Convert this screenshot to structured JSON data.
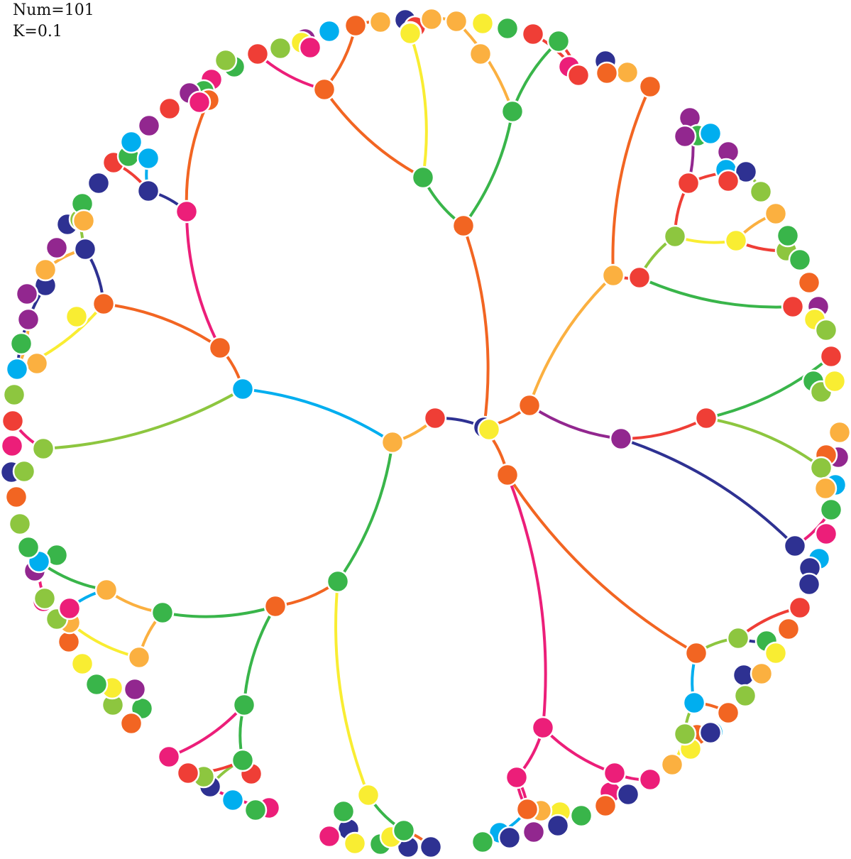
{
  "labels": {
    "num": "Num=101",
    "k": "K=0.1"
  },
  "colors": {
    "red": "#ef3e36",
    "orange": "#f26522",
    "lightorange": "#fbb040",
    "yellow": "#f9ed32",
    "green": "#39b54a",
    "lime": "#8dc63f",
    "cyan": "#00aeef",
    "navy": "#2e3192",
    "purple": "#92278f",
    "pink": "#ec1e79"
  },
  "nodes": [
    {
      "id": "center",
      "c": "navy"
    },
    {
      "id": "ctr-y",
      "c": "yellow"
    },
    {
      "id": "n-red",
      "c": "red"
    },
    {
      "id": "n-or",
      "c": "lightorange"
    },
    {
      "id": "n-cy",
      "c": "cyan"
    },
    {
      "id": "n-gr",
      "c": "green"
    },
    {
      "id": "ne-or",
      "c": "orange"
    },
    {
      "id": "s-or",
      "c": "orange"
    },
    {
      "id": "top-or",
      "c": "orange"
    },
    {
      "id": "top-gr",
      "c": "green"
    },
    {
      "id": "top-or2",
      "c": "orange"
    },
    {
      "id": "top-gr2",
      "c": "green"
    },
    {
      "id": "tr-lo",
      "c": "lightorange"
    },
    {
      "id": "tr-red",
      "c": "red"
    },
    {
      "id": "tr-lime",
      "c": "lime"
    },
    {
      "id": "tr-y",
      "c": "yellow"
    },
    {
      "id": "tr-red2",
      "c": "red"
    },
    {
      "id": "tr-or",
      "c": "orange"
    },
    {
      "id": "r-pu",
      "c": "purple"
    },
    {
      "id": "r-red",
      "c": "red"
    },
    {
      "id": "r-navy",
      "c": "navy"
    },
    {
      "id": "l-or",
      "c": "orange"
    },
    {
      "id": "l-pink",
      "c": "pink"
    },
    {
      "id": "l-or2",
      "c": "orange"
    },
    {
      "id": "l-navy",
      "c": "navy"
    },
    {
      "id": "l-lime",
      "c": "lime"
    },
    {
      "id": "sw-or",
      "c": "orange"
    },
    {
      "id": "sw-gr",
      "c": "green"
    },
    {
      "id": "sw-lo",
      "c": "lightorange"
    },
    {
      "id": "sw-lo2",
      "c": "lightorange"
    },
    {
      "id": "b-gr",
      "c": "green"
    },
    {
      "id": "b-gr2",
      "c": "green"
    },
    {
      "id": "b-y",
      "c": "yellow"
    },
    {
      "id": "b-gr3",
      "c": "green"
    },
    {
      "id": "se-pink",
      "c": "pink"
    },
    {
      "id": "se-pink2",
      "c": "pink"
    },
    {
      "id": "se-pink3",
      "c": "pink"
    },
    {
      "id": "se-or",
      "c": "orange"
    },
    {
      "id": "se-lime",
      "c": "lime"
    },
    {
      "id": "se-cy",
      "c": "cyan"
    },
    {
      "id": "se-lime2",
      "c": "lime"
    },
    {
      "id": "tl-or",
      "c": "orange"
    },
    {
      "id": "tl-navy",
      "c": "navy"
    },
    {
      "id": "tl-pink",
      "c": "pink"
    },
    {
      "id": "o1",
      "c": "lime"
    },
    {
      "id": "o2",
      "c": "purple"
    },
    {
      "id": "o3",
      "c": "cyan"
    },
    {
      "id": "o4",
      "c": "yellow"
    },
    {
      "id": "o5",
      "c": "pink"
    },
    {
      "id": "o6",
      "c": "orange"
    },
    {
      "id": "o7",
      "c": "lightorange"
    },
    {
      "id": "o8",
      "c": "navy"
    },
    {
      "id": "o9",
      "c": "red"
    },
    {
      "id": "o10",
      "c": "yellow"
    },
    {
      "id": "o11",
      "c": "lightorange"
    },
    {
      "id": "o12",
      "c": "yellow"
    },
    {
      "id": "o13",
      "c": "lightorange"
    },
    {
      "id": "o14",
      "c": "green"
    },
    {
      "id": "o15",
      "c": "red"
    },
    {
      "id": "o16",
      "c": "green"
    },
    {
      "id": "o17",
      "c": "yellow"
    },
    {
      "id": "o18",
      "c": "navy"
    },
    {
      "id": "o19",
      "c": "pink"
    },
    {
      "id": "o20",
      "c": "red"
    },
    {
      "id": "o21",
      "c": "red"
    },
    {
      "id": "o22",
      "c": "lightorange"
    },
    {
      "id": "o23",
      "c": "orange"
    },
    {
      "id": "o24",
      "c": "lightorange"
    },
    {
      "id": "o25",
      "c": "purple"
    },
    {
      "id": "o26",
      "c": "green"
    },
    {
      "id": "o27",
      "c": "cyan"
    },
    {
      "id": "o28",
      "c": "purple"
    },
    {
      "id": "o29",
      "c": "purple"
    },
    {
      "id": "o30",
      "c": "cyan"
    },
    {
      "id": "o31",
      "c": "navy"
    },
    {
      "id": "o32",
      "c": "red"
    },
    {
      "id": "o33",
      "c": "orange"
    },
    {
      "id": "o34",
      "c": "lime"
    },
    {
      "id": "o35",
      "c": "lightorange"
    },
    {
      "id": "o36",
      "c": "lime"
    },
    {
      "id": "o37",
      "c": "red"
    },
    {
      "id": "o38",
      "c": "green"
    },
    {
      "id": "o39",
      "c": "orange"
    },
    {
      "id": "o40",
      "c": "purple"
    },
    {
      "id": "o41",
      "c": "green"
    },
    {
      "id": "o42",
      "c": "yellow"
    },
    {
      "id": "o43",
      "c": "lime"
    },
    {
      "id": "o44",
      "c": "red"
    },
    {
      "id": "o45",
      "c": "green"
    },
    {
      "id": "o46",
      "c": "lime"
    },
    {
      "id": "o47",
      "c": "yellow"
    },
    {
      "id": "o48",
      "c": "red"
    },
    {
      "id": "o49",
      "c": "lightorange"
    },
    {
      "id": "o50",
      "c": "purple"
    },
    {
      "id": "o51",
      "c": "orange"
    },
    {
      "id": "o52",
      "c": "lime"
    },
    {
      "id": "o53",
      "c": "cyan"
    },
    {
      "id": "o54",
      "c": "lightorange"
    },
    {
      "id": "o55",
      "c": "green"
    },
    {
      "id": "o56",
      "c": "pink"
    },
    {
      "id": "o57",
      "c": "cyan"
    },
    {
      "id": "o58",
      "c": "navy"
    },
    {
      "id": "o59",
      "c": "navy"
    },
    {
      "id": "o60",
      "c": "red"
    },
    {
      "id": "o61",
      "c": "red"
    },
    {
      "id": "o62",
      "c": "orange"
    },
    {
      "id": "o63",
      "c": "green"
    },
    {
      "id": "o64",
      "c": "yellow"
    },
    {
      "id": "o65",
      "c": "navy"
    },
    {
      "id": "o66",
      "c": "lightorange"
    },
    {
      "id": "o67",
      "c": "lime"
    },
    {
      "id": "o68",
      "c": "orange"
    },
    {
      "id": "o69",
      "c": "cyan"
    },
    {
      "id": "o70",
      "c": "lime"
    },
    {
      "id": "o71",
      "c": "orange"
    },
    {
      "id": "o72",
      "c": "navy"
    },
    {
      "id": "o73",
      "c": "yellow"
    },
    {
      "id": "o74",
      "c": "lightorange"
    },
    {
      "id": "o75",
      "c": "pink"
    },
    {
      "id": "o76",
      "c": "pink"
    },
    {
      "id": "o77",
      "c": "navy"
    },
    {
      "id": "o78",
      "c": "orange"
    },
    {
      "id": "o79",
      "c": "green"
    },
    {
      "id": "o80",
      "c": "yellow"
    },
    {
      "id": "o81",
      "c": "navy"
    },
    {
      "id": "o82",
      "c": "lightorange"
    },
    {
      "id": "o83",
      "c": "purple"
    },
    {
      "id": "o84",
      "c": "cyan"
    },
    {
      "id": "o85",
      "c": "navy"
    },
    {
      "id": "o86",
      "c": "pink"
    },
    {
      "id": "o87",
      "c": "orange"
    },
    {
      "id": "o88",
      "c": "green"
    },
    {
      "id": "o89",
      "c": "navy"
    },
    {
      "id": "o90",
      "c": "green"
    },
    {
      "id": "o91",
      "c": "yellow"
    },
    {
      "id": "o92",
      "c": "navy"
    },
    {
      "id": "o93",
      "c": "navy"
    },
    {
      "id": "o94",
      "c": "green"
    },
    {
      "id": "o95",
      "c": "pink"
    },
    {
      "id": "o96",
      "c": "yellow"
    },
    {
      "id": "o97",
      "c": "pink"
    },
    {
      "id": "o98",
      "c": "red"
    },
    {
      "id": "o99",
      "c": "green"
    },
    {
      "id": "o100",
      "c": "cyan"
    },
    {
      "id": "o101",
      "c": "navy"
    },
    {
      "id": "o102",
      "c": "lime"
    },
    {
      "id": "o103",
      "c": "pink"
    },
    {
      "id": "o104",
      "c": "red"
    },
    {
      "id": "o105",
      "c": "green"
    },
    {
      "id": "o106",
      "c": "orange"
    },
    {
      "id": "o107",
      "c": "purple"
    },
    {
      "id": "o108",
      "c": "lime"
    },
    {
      "id": "o109",
      "c": "yellow"
    },
    {
      "id": "o110",
      "c": "green"
    },
    {
      "id": "o111",
      "c": "yellow"
    },
    {
      "id": "o112",
      "c": "orange"
    },
    {
      "id": "o113",
      "c": "lightorange"
    },
    {
      "id": "o114",
      "c": "lime"
    },
    {
      "id": "o115",
      "c": "pink"
    },
    {
      "id": "o116",
      "c": "navy"
    },
    {
      "id": "o117",
      "c": "green"
    },
    {
      "id": "o118",
      "c": "pink"
    },
    {
      "id": "o119",
      "c": "lime"
    },
    {
      "id": "o120",
      "c": "purple"
    },
    {
      "id": "o121",
      "c": "cyan"
    },
    {
      "id": "o122",
      "c": "green"
    },
    {
      "id": "o123",
      "c": "lime"
    },
    {
      "id": "o124",
      "c": "navy"
    },
    {
      "id": "o125",
      "c": "lightorange"
    },
    {
      "id": "o126",
      "c": "lime"
    },
    {
      "id": "o127",
      "c": "pink"
    },
    {
      "id": "o128",
      "c": "red"
    },
    {
      "id": "o129",
      "c": "lime"
    },
    {
      "id": "o130",
      "c": "orange"
    },
    {
      "id": "o131",
      "c": "lightorange"
    },
    {
      "id": "o132",
      "c": "cyan"
    },
    {
      "id": "o133",
      "c": "green"
    },
    {
      "id": "o134",
      "c": "yellow"
    },
    {
      "id": "o135",
      "c": "purple"
    },
    {
      "id": "o136",
      "c": "navy"
    },
    {
      "id": "o137",
      "c": "purple"
    },
    {
      "id": "o138",
      "c": "lightorange"
    },
    {
      "id": "o139",
      "c": "purple"
    },
    {
      "id": "o140",
      "c": "navy"
    },
    {
      "id": "o141",
      "c": "lime"
    },
    {
      "id": "o142",
      "c": "green"
    },
    {
      "id": "o143",
      "c": "lightorange"
    },
    {
      "id": "o144",
      "c": "navy"
    },
    {
      "id": "o145",
      "c": "red"
    },
    {
      "id": "o146",
      "c": "green"
    },
    {
      "id": "o147",
      "c": "cyan"
    },
    {
      "id": "o148",
      "c": "cyan"
    },
    {
      "id": "o149",
      "c": "purple"
    },
    {
      "id": "o150",
      "c": "red"
    },
    {
      "id": "o151",
      "c": "navy"
    },
    {
      "id": "o152",
      "c": "navy"
    },
    {
      "id": "o153",
      "c": "green"
    },
    {
      "id": "o154",
      "c": "pink"
    },
    {
      "id": "o155",
      "c": "green"
    },
    {
      "id": "o156",
      "c": "lime"
    },
    {
      "id": "o157",
      "c": "purple"
    }
  ],
  "edges": [
    {
      "from": "ctr-y",
      "to": "n-red",
      "c": "navy"
    },
    {
      "from": "n-red",
      "to": "n-or",
      "c": "lightorange"
    },
    {
      "from": "n-or",
      "to": "n-cy",
      "c": "cyan"
    },
    {
      "from": "n-or",
      "to": "n-gr",
      "c": "green"
    },
    {
      "from": "center",
      "to": "ne-or",
      "c": "orange"
    },
    {
      "from": "center",
      "to": "s-or",
      "c": "orange"
    },
    {
      "from": "center",
      "to": "top-or",
      "c": "orange"
    },
    {
      "from": "top-or",
      "to": "top-gr",
      "c": "green"
    },
    {
      "from": "top-or",
      "to": "top-gr2",
      "c": "green"
    },
    {
      "from": "top-gr",
      "to": "top-or2",
      "c": "orange"
    },
    {
      "from": "top-gr",
      "to": "o12",
      "c": "yellow"
    },
    {
      "from": "top-or2",
      "to": "o20",
      "c": "pink"
    },
    {
      "from": "top-or2",
      "to": "o6",
      "c": "orange"
    },
    {
      "from": "o6",
      "to": "o7",
      "c": "orange"
    },
    {
      "from": "top-gr2",
      "to": "o13",
      "c": "lightorange"
    },
    {
      "from": "top-gr2",
      "to": "o16",
      "c": "green"
    },
    {
      "from": "o13",
      "to": "o11",
      "c": "lightorange"
    },
    {
      "from": "o16",
      "to": "o21",
      "c": "red"
    },
    {
      "from": "o21",
      "to": "o15",
      "c": "red"
    },
    {
      "from": "ne-or",
      "to": "tr-lo",
      "c": "lightorange"
    },
    {
      "from": "ne-or",
      "to": "r-pu",
      "c": "purple"
    },
    {
      "from": "tr-lo",
      "to": "tr-or",
      "c": "orange"
    },
    {
      "from": "tr-lo",
      "to": "tr-red",
      "c": "red"
    },
    {
      "from": "tr-red",
      "to": "tr-lime",
      "c": "lime"
    },
    {
      "from": "tr-red",
      "to": "o37",
      "c": "green"
    },
    {
      "from": "tr-lime",
      "to": "tr-red2",
      "c": "red"
    },
    {
      "from": "tr-lime",
      "to": "tr-y",
      "c": "yellow"
    },
    {
      "from": "tr-y",
      "to": "o35",
      "c": "lightorange"
    },
    {
      "from": "tr-y",
      "to": "o36",
      "c": "red"
    },
    {
      "from": "tr-red2",
      "to": "o31",
      "c": "red"
    },
    {
      "from": "tr-red2",
      "to": "o25",
      "c": "purple"
    },
    {
      "from": "o31",
      "to": "o34",
      "c": "lime"
    },
    {
      "from": "r-pu",
      "to": "r-red",
      "c": "red"
    },
    {
      "from": "r-pu",
      "to": "r-navy",
      "c": "navy"
    },
    {
      "from": "r-red",
      "to": "o44",
      "c": "green"
    },
    {
      "from": "r-red",
      "to": "o48",
      "c": "lime"
    },
    {
      "from": "r-navy",
      "to": "o55",
      "c": "pink"
    },
    {
      "from": "s-or",
      "to": "se-pink",
      "c": "pink"
    },
    {
      "from": "s-or",
      "to": "se-or",
      "c": "orange"
    },
    {
      "from": "se-or",
      "to": "se-lime",
      "c": "lime"
    },
    {
      "from": "se-or",
      "to": "se-cy",
      "c": "cyan"
    },
    {
      "from": "se-lime",
      "to": "o60",
      "c": "red"
    },
    {
      "from": "se-lime",
      "to": "o63",
      "c": "navy"
    },
    {
      "from": "se-cy",
      "to": "o68",
      "c": "orange"
    },
    {
      "from": "se-cy",
      "to": "se-lime2",
      "c": "lime"
    },
    {
      "from": "se-lime2",
      "to": "o74",
      "c": "yellow"
    },
    {
      "from": "se-pink",
      "to": "se-pink2",
      "c": "pink"
    },
    {
      "from": "se-pink",
      "to": "se-pink3",
      "c": "pink"
    },
    {
      "from": "se-pink2",
      "to": "o75",
      "c": "pink"
    },
    {
      "from": "se-pink3",
      "to": "o86",
      "c": "pink"
    },
    {
      "from": "se-pink3",
      "to": "o87",
      "c": "pink"
    },
    {
      "from": "o87",
      "to": "o84",
      "c": "cyan"
    },
    {
      "from": "n-gr",
      "to": "b-y",
      "c": "yellow"
    },
    {
      "from": "n-gr",
      "to": "sw-or",
      "c": "orange"
    },
    {
      "from": "b-y",
      "to": "b-gr3",
      "c": "green"
    },
    {
      "from": "b-gr3",
      "to": "o92",
      "c": "orange"
    },
    {
      "from": "sw-or",
      "to": "b-gr",
      "c": "green"
    },
    {
      "from": "sw-or",
      "to": "sw-gr",
      "c": "green"
    },
    {
      "from": "b-gr",
      "to": "b-gr2",
      "c": "green"
    },
    {
      "from": "b-gr",
      "to": "o103",
      "c": "pink"
    },
    {
      "from": "b-gr2",
      "to": "o101",
      "c": "lime"
    },
    {
      "from": "b-gr2",
      "to": "o104",
      "c": "red"
    },
    {
      "from": "o104",
      "to": "o97",
      "c": "pink"
    },
    {
      "from": "sw-gr",
      "to": "sw-lo",
      "c": "lightorange"
    },
    {
      "from": "sw-gr",
      "to": "sw-lo2",
      "c": "lightorange"
    },
    {
      "from": "sw-lo2",
      "to": "o113",
      "c": "yellow"
    },
    {
      "from": "sw-lo",
      "to": "o118",
      "c": "cyan"
    },
    {
      "from": "sw-lo",
      "to": "o121",
      "c": "green"
    },
    {
      "from": "o121",
      "to": "o119",
      "c": "pink"
    },
    {
      "from": "n-cy",
      "to": "l-lime",
      "c": "lime"
    },
    {
      "from": "n-cy",
      "to": "l-or",
      "c": "orange"
    },
    {
      "from": "l-lime",
      "to": "o128",
      "c": "pink"
    },
    {
      "from": "l-or",
      "to": "l-or2",
      "c": "orange"
    },
    {
      "from": "l-or",
      "to": "l-pink",
      "c": "pink"
    },
    {
      "from": "l-or2",
      "to": "l-navy",
      "c": "navy"
    },
    {
      "from": "l-or2",
      "to": "o132",
      "c": "yellow"
    },
    {
      "from": "o132",
      "to": "o135",
      "c": "lightorange"
    },
    {
      "from": "o132",
      "to": "o136",
      "c": "navy"
    },
    {
      "from": "l-navy",
      "to": "o138",
      "c": "lightorange"
    },
    {
      "from": "l-navy",
      "to": "o142",
      "c": "lime"
    },
    {
      "from": "l-pink",
      "to": "tl-navy",
      "c": "navy"
    },
    {
      "from": "l-pink",
      "to": "tl-or",
      "c": "orange"
    },
    {
      "from": "tl-navy",
      "to": "o145",
      "c": "red"
    },
    {
      "from": "tl-navy",
      "to": "o147",
      "c": "cyan"
    },
    {
      "from": "tl-or",
      "to": "tl-pink",
      "c": "orange"
    },
    {
      "from": "tl-pink",
      "to": "o154",
      "c": "pink"
    }
  ]
}
